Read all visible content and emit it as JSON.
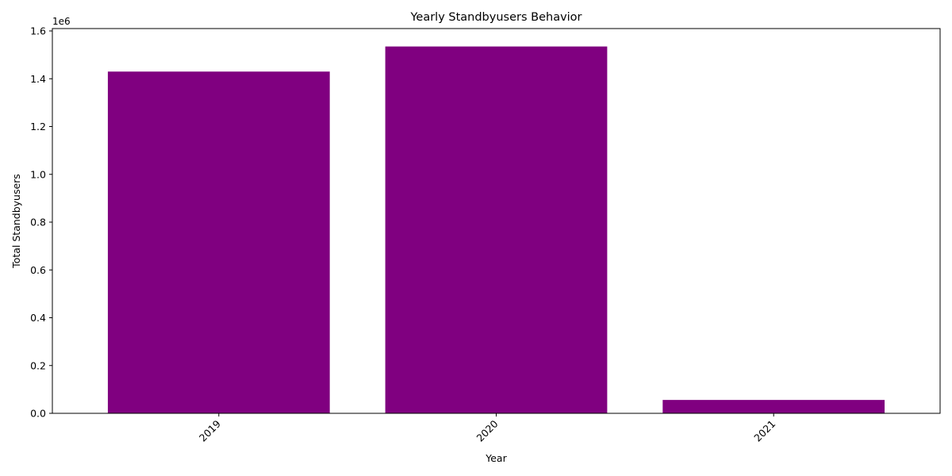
{
  "chart_data": {
    "type": "bar",
    "title": "Yearly Standbyusers Behavior",
    "xlabel": "Year",
    "ylabel": "Total Standbyusers",
    "offset_label": "1e6",
    "categories": [
      "2019",
      "2020",
      "2021"
    ],
    "values": [
      1430000,
      1535000,
      56000
    ],
    "ylim": [
      0,
      1610000
    ],
    "yticks": [
      0,
      200000,
      400000,
      600000,
      800000,
      1000000,
      1200000,
      1400000,
      1600000
    ],
    "ytick_labels": [
      "0.0",
      "0.2",
      "0.4",
      "0.6",
      "0.8",
      "1.0",
      "1.2",
      "1.4",
      "1.6"
    ],
    "xtick_rotation": 45,
    "grid": false,
    "legend": "none",
    "bar_color": "#800080"
  }
}
